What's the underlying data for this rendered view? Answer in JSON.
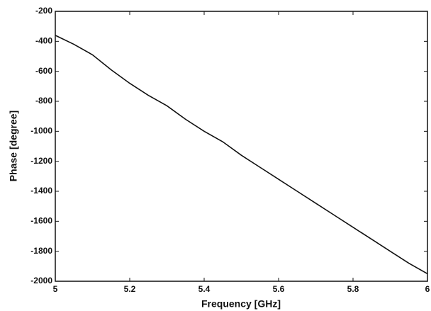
{
  "chart_data": {
    "type": "line",
    "x_label": "Frequency [GHz]",
    "y_label": "Phase [degree]",
    "x": [
      5.0,
      5.05,
      5.1,
      5.15,
      5.2,
      5.25,
      5.3,
      5.35,
      5.4,
      5.45,
      5.5,
      5.55,
      5.6,
      5.65,
      5.7,
      5.75,
      5.8,
      5.85,
      5.9,
      5.95,
      6.0
    ],
    "series": [
      {
        "name": "Phase",
        "color": "#111111",
        "values": [
          -360,
          -420,
          -490,
          -590,
          -680,
          -760,
          -830,
          -920,
          -1000,
          -1070,
          -1160,
          -1240,
          -1320,
          -1400,
          -1480,
          -1560,
          -1640,
          -1720,
          -1800,
          -1880,
          -1950
        ]
      }
    ],
    "xlim": [
      5,
      6
    ],
    "xticks": [
      5,
      5.2,
      5.4,
      5.6,
      5.8,
      6
    ],
    "ylim": [
      -2000,
      -200
    ],
    "yticks": [
      -2000,
      -1800,
      -1600,
      -1400,
      -1200,
      -1000,
      -800,
      -600,
      -400,
      -200
    ],
    "grid": false
  }
}
